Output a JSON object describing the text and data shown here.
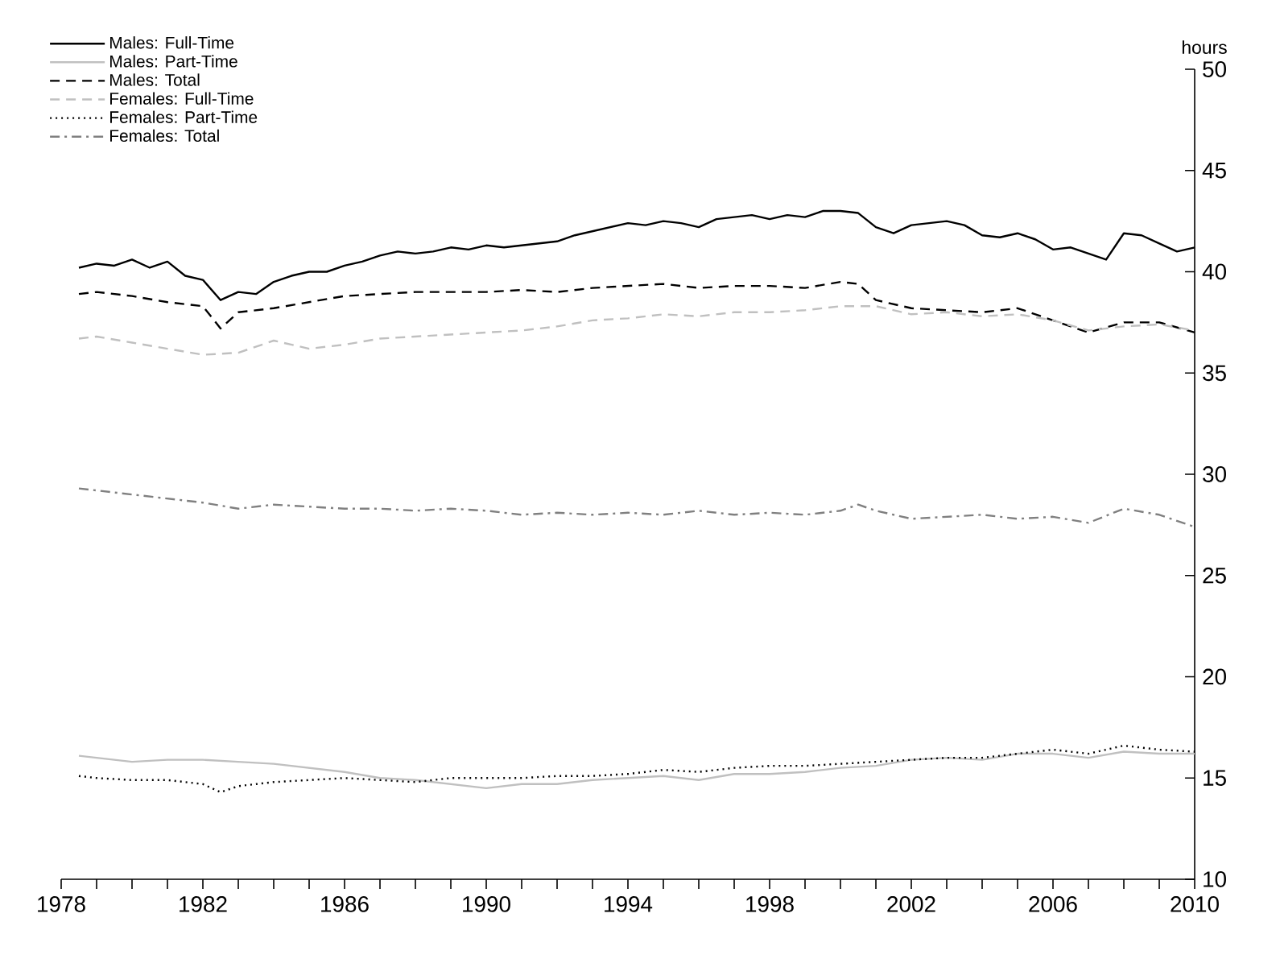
{
  "chart_data": {
    "type": "line",
    "ylabel": "hours",
    "legend": "top left",
    "xlim": [
      1978,
      2010
    ],
    "ylim": [
      10,
      50
    ],
    "xticks": [
      1978,
      {
        "value": 1979,
        "label": null
      },
      {
        "value": 1980,
        "label": null
      },
      {
        "value": 1981,
        "label": null
      },
      1982,
      {
        "value": 1983,
        "label": null
      },
      {
        "value": 1984,
        "label": null
      },
      {
        "value": 1985,
        "label": null
      },
      1986,
      {
        "value": 1987,
        "label": null
      },
      {
        "value": 1988,
        "label": null
      },
      {
        "value": 1989,
        "label": null
      },
      1990,
      {
        "value": 1991,
        "label": null
      },
      {
        "value": 1992,
        "label": null
      },
      {
        "value": 1993,
        "label": null
      },
      1994,
      {
        "value": 1995,
        "label": null
      },
      {
        "value": 1996,
        "label": null
      },
      {
        "value": 1997,
        "label": null
      },
      1998,
      {
        "value": 1999,
        "label": null
      },
      {
        "value": 2000,
        "label": null
      },
      {
        "value": 2001,
        "label": null
      },
      2002,
      {
        "value": 2003,
        "label": null
      },
      {
        "value": 2004,
        "label": null
      },
      {
        "value": 2005,
        "label": null
      },
      2006,
      {
        "value": 2007,
        "label": null
      },
      {
        "value": 2008,
        "label": null
      },
      {
        "value": 2009,
        "label": null
      },
      2010
    ],
    "yticks": [
      10,
      15,
      20,
      25,
      30,
      35,
      40,
      45,
      50
    ],
    "series": [
      {
        "name": "Males: Full-Time",
        "color": "#000000",
        "line_style": "solid",
        "x": [
          1978.5,
          1979,
          1979.5,
          1980,
          1980.5,
          1981,
          1981.5,
          1982,
          1982.5,
          1983,
          1983.5,
          1984,
          1984.5,
          1985,
          1985.5,
          1986,
          1986.5,
          1987,
          1987.5,
          1988,
          1988.5,
          1989,
          1989.5,
          1990,
          1990.5,
          1991,
          1991.5,
          1992,
          1992.5,
          1993,
          1993.5,
          1994,
          1994.5,
          1995,
          1995.5,
          1996,
          1996.5,
          1997,
          1997.5,
          1998,
          1998.5,
          1999,
          1999.5,
          2000,
          2000.5,
          2001,
          2001.5,
          2002,
          2002.5,
          2003,
          2003.5,
          2004,
          2004.5,
          2005,
          2005.5,
          2006,
          2006.5,
          2007,
          2007.5,
          2008,
          2008.5,
          2009,
          2009.5,
          2010
        ],
        "values": [
          40.2,
          40.4,
          40.3,
          40.6,
          40.2,
          40.5,
          39.8,
          39.6,
          38.6,
          39.0,
          38.9,
          39.5,
          39.8,
          40.0,
          40.0,
          40.3,
          40.5,
          40.8,
          41.0,
          40.9,
          41.0,
          41.2,
          41.1,
          41.3,
          41.2,
          41.3,
          41.4,
          41.5,
          41.8,
          42.0,
          42.2,
          42.4,
          42.3,
          42.5,
          42.4,
          42.2,
          42.6,
          42.7,
          42.8,
          42.6,
          42.8,
          42.7,
          43.0,
          43.0,
          42.9,
          42.2,
          41.9,
          42.3,
          42.4,
          42.5,
          42.3,
          41.8,
          41.7,
          41.9,
          41.6,
          41.1,
          41.2,
          40.9,
          40.6,
          41.9,
          41.8,
          41.4,
          41.0,
          41.2
        ]
      },
      {
        "name": "Males: Part-Time",
        "color": "#c0c0c0",
        "line_style": "solid",
        "x": [
          1978.5,
          1979,
          1980,
          1981,
          1982,
          1983,
          1984,
          1985,
          1986,
          1987,
          1988,
          1989,
          1990,
          1991,
          1992,
          1993,
          1994,
          1995,
          1996,
          1997,
          1998,
          1999,
          2000,
          2001,
          2002,
          2003,
          2004,
          2005,
          2006,
          2007,
          2008,
          2009,
          2010
        ],
        "values": [
          16.1,
          16.0,
          15.8,
          15.9,
          15.9,
          15.8,
          15.7,
          15.5,
          15.3,
          15.0,
          14.9,
          14.7,
          14.5,
          14.7,
          14.7,
          14.9,
          15.0,
          15.1,
          14.9,
          15.2,
          15.2,
          15.3,
          15.5,
          15.6,
          15.9,
          16.0,
          15.9,
          16.2,
          16.2,
          16.0,
          16.3,
          16.2,
          16.2
        ]
      },
      {
        "name": "Males: Total",
        "color": "#000000",
        "line_style": "dashed",
        "x": [
          1978.5,
          1979,
          1980,
          1981,
          1982,
          1982.5,
          1983,
          1984,
          1985,
          1986,
          1987,
          1988,
          1989,
          1990,
          1991,
          1992,
          1993,
          1994,
          1995,
          1996,
          1997,
          1998,
          1999,
          2000,
          2000.5,
          2001,
          2002,
          2003,
          2004,
          2005,
          2006,
          2007,
          2008,
          2009,
          2010
        ],
        "values": [
          38.9,
          39.0,
          38.8,
          38.5,
          38.3,
          37.2,
          38.0,
          38.2,
          38.5,
          38.8,
          38.9,
          39.0,
          39.0,
          39.0,
          39.1,
          39.0,
          39.2,
          39.3,
          39.4,
          39.2,
          39.3,
          39.3,
          39.2,
          39.5,
          39.4,
          38.6,
          38.2,
          38.1,
          38.0,
          38.2,
          37.6,
          37.0,
          37.5,
          37.5,
          37.0
        ]
      },
      {
        "name": "Females: Full-Time",
        "color": "#c0c0c0",
        "line_style": "dashed",
        "x": [
          1978.5,
          1979,
          1980,
          1981,
          1982,
          1983,
          1984,
          1985,
          1986,
          1987,
          1988,
          1989,
          1990,
          1991,
          1992,
          1993,
          1994,
          1995,
          1996,
          1997,
          1998,
          1999,
          2000,
          2001,
          2002,
          2003,
          2004,
          2005,
          2006,
          2007,
          2008,
          2009,
          2010
        ],
        "values": [
          36.7,
          36.8,
          36.5,
          36.2,
          35.9,
          36.0,
          36.6,
          36.2,
          36.4,
          36.7,
          36.8,
          36.9,
          37.0,
          37.1,
          37.3,
          37.6,
          37.7,
          37.9,
          37.8,
          38.0,
          38.0,
          38.1,
          38.3,
          38.3,
          37.9,
          38.0,
          37.8,
          37.9,
          37.6,
          37.1,
          37.3,
          37.4,
          37.1
        ]
      },
      {
        "name": "Females: Part-Time",
        "color": "#000000",
        "line_style": "dotted",
        "x": [
          1978.5,
          1979,
          1980,
          1981,
          1982,
          1982.5,
          1983,
          1984,
          1985,
          1986,
          1987,
          1988,
          1989,
          1990,
          1991,
          1992,
          1993,
          1994,
          1995,
          1996,
          1997,
          1998,
          1999,
          2000,
          2001,
          2002,
          2003,
          2004,
          2005,
          2006,
          2007,
          2008,
          2009,
          2010
        ],
        "values": [
          15.1,
          15.0,
          14.9,
          14.9,
          14.7,
          14.3,
          14.6,
          14.8,
          14.9,
          15.0,
          14.9,
          14.8,
          15.0,
          15.0,
          15.0,
          15.1,
          15.1,
          15.2,
          15.4,
          15.3,
          15.5,
          15.6,
          15.6,
          15.7,
          15.8,
          15.9,
          16.0,
          16.0,
          16.2,
          16.4,
          16.2,
          16.6,
          16.4,
          16.3
        ]
      },
      {
        "name": "Females: Total",
        "color": "#808080",
        "line_style": "dashdot",
        "x": [
          1978.5,
          1979,
          1980,
          1981,
          1982,
          1983,
          1984,
          1985,
          1986,
          1987,
          1988,
          1989,
          1990,
          1991,
          1992,
          1993,
          1994,
          1995,
          1996,
          1997,
          1998,
          1999,
          2000,
          2000.5,
          2001,
          2002,
          2003,
          2004,
          2005,
          2006,
          2007,
          2008,
          2009,
          2010
        ],
        "values": [
          29.3,
          29.2,
          29.0,
          28.8,
          28.6,
          28.3,
          28.5,
          28.4,
          28.3,
          28.3,
          28.2,
          28.3,
          28.2,
          28.0,
          28.1,
          28.0,
          28.1,
          28.0,
          28.2,
          28.0,
          28.1,
          28.0,
          28.2,
          28.5,
          28.2,
          27.8,
          27.9,
          28.0,
          27.8,
          27.9,
          27.6,
          28.3,
          28.0,
          27.4
        ]
      }
    ]
  }
}
